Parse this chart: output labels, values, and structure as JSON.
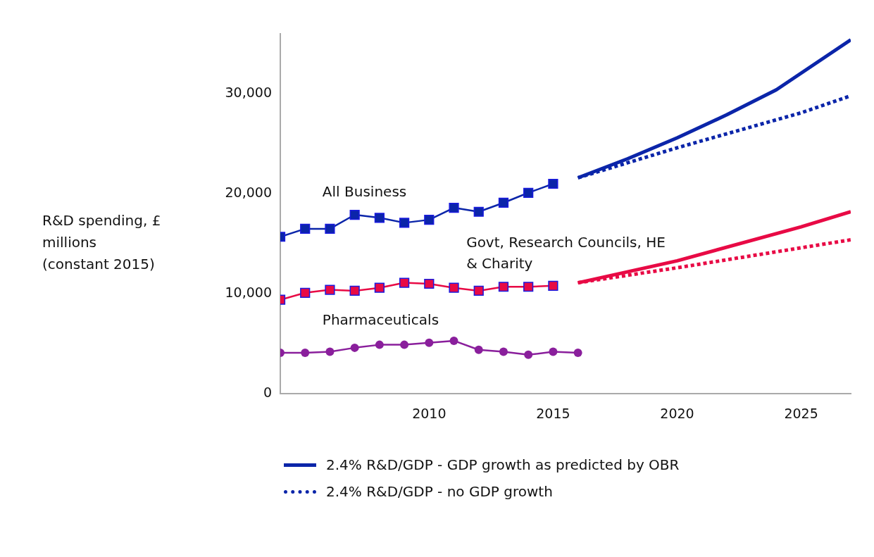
{
  "chart_data": {
    "type": "line",
    "ylabel": "R&D spending, £ millions (constant 2015)",
    "xlim": [
      2004,
      2027
    ],
    "xticks": [
      2010,
      2015,
      2020,
      2025
    ],
    "ylim": [
      0,
      36000
    ],
    "yticks": [
      {
        "value": 0,
        "label": "0"
      },
      {
        "value": 10000,
        "label": "10,000"
      },
      {
        "value": 20000,
        "label": "20,000"
      },
      {
        "value": 30000,
        "label": "30,000"
      }
    ],
    "legend": "bottom",
    "series": [
      {
        "name": "All Business",
        "color": "#0b25a9",
        "marker": "square",
        "line_style": "solid",
        "x": [
          2004,
          2005,
          2006,
          2007,
          2008,
          2009,
          2010,
          2011,
          2012,
          2013,
          2014,
          2015
        ],
        "values": [
          15700,
          16500,
          16500,
          17900,
          17600,
          17100,
          17400,
          18600,
          18200,
          19100,
          20100,
          21000
        ]
      },
      {
        "name": "Govt, Research Councils, HE & Charity",
        "color": "#e80a45",
        "marker": "square",
        "line_style": "solid",
        "x": [
          2004,
          2005,
          2006,
          2007,
          2008,
          2009,
          2010,
          2011,
          2012,
          2013,
          2014,
          2015
        ],
        "values": [
          9400,
          10100,
          10400,
          10300,
          10600,
          11100,
          11000,
          10600,
          10300,
          10700,
          10700,
          10800
        ]
      },
      {
        "name": "Pharmaceuticals",
        "color": "#8a1f9c",
        "marker": "circle",
        "line_style": "solid",
        "x": [
          2004,
          2005,
          2006,
          2007,
          2008,
          2009,
          2010,
          2011,
          2012,
          2013,
          2014,
          2015,
          2016
        ],
        "values": [
          4100,
          4100,
          4200,
          4600,
          4900,
          4900,
          5100,
          5300,
          4400,
          4200,
          3900,
          4200,
          4100
        ]
      },
      {
        "name": "2.4% R&D/GDP - GDP growth as predicted by OBR",
        "color": "#0b25a9",
        "marker": "none",
        "line_style": "solid",
        "x": [
          2016,
          2018,
          2020,
          2022,
          2024,
          2027
        ],
        "values": [
          21600,
          23500,
          25600,
          27900,
          30400,
          35400
        ]
      },
      {
        "name": "2.4% R&D/GDP - no GDP growth",
        "color": "#0b25a9",
        "marker": "none",
        "line_style": "dotted",
        "x": [
          2016,
          2020,
          2025,
          2027
        ],
        "values": [
          21600,
          24600,
          28100,
          29800
        ]
      },
      {
        "color": "#e80a45",
        "marker": "none",
        "line_style": "solid",
        "x": [
          2016,
          2020,
          2025,
          2027
        ],
        "values": [
          11100,
          13300,
          16700,
          18200
        ]
      },
      {
        "color": "#e80a45",
        "marker": "none",
        "line_style": "dotted",
        "x": [
          2016,
          2020,
          2025,
          2027
        ],
        "values": [
          11100,
          12600,
          14600,
          15400
        ]
      }
    ]
  }
}
